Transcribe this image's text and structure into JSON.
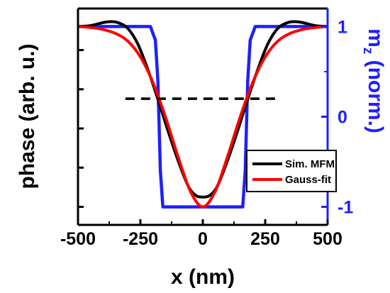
{
  "chart_data": {
    "type": "line",
    "xlabel": "x (nm)",
    "ylabel_left": "phase (arb. u.)",
    "ylabel_right_main": "m",
    "ylabel_right_sub": "z",
    "ylabel_right_rest": " (norm.)",
    "xlim": [
      -500,
      500
    ],
    "x_ticks": [
      -500,
      -250,
      0,
      250,
      500
    ],
    "y_right_lim": [
      -1.2,
      1.2
    ],
    "y_right_ticks": [
      -1,
      0,
      1
    ],
    "y_left_lim": [
      0,
      1
    ],
    "y_left_tick_labels": "none",
    "legend_position": "lower-right",
    "colors": {
      "sim_mfm": "#000000",
      "gauss_fit": "#ff0000",
      "mz": "#1f1fff",
      "reference": "#000000"
    },
    "series": [
      {
        "name": "Sim. MFM",
        "axis": "left",
        "x": [
          -500,
          -450,
          -400,
          -370,
          -340,
          -300,
          -260,
          -220,
          -180,
          -140,
          -100,
          -60,
          -30,
          0,
          30,
          60,
          100,
          140,
          180,
          220,
          260,
          300,
          340,
          370,
          400,
          450,
          500
        ],
        "y": [
          0.97,
          0.975,
          0.99,
          0.995,
          0.99,
          0.96,
          0.88,
          0.75,
          0.6,
          0.44,
          0.29,
          0.16,
          0.11,
          0.1,
          0.11,
          0.16,
          0.29,
          0.44,
          0.6,
          0.75,
          0.88,
          0.96,
          0.99,
          0.995,
          0.99,
          0.975,
          0.97
        ]
      },
      {
        "name": "Gauss-fit",
        "axis": "left",
        "x": [
          -500,
          -450,
          -400,
          -350,
          -300,
          -250,
          -200,
          -150,
          -100,
          -50,
          0,
          50,
          100,
          150,
          200,
          250,
          300,
          350,
          400,
          450,
          500
        ],
        "y": [
          0.97,
          0.965,
          0.955,
          0.935,
          0.895,
          0.815,
          0.685,
          0.51,
          0.31,
          0.13,
          0.05,
          0.13,
          0.31,
          0.51,
          0.685,
          0.815,
          0.895,
          0.935,
          0.955,
          0.965,
          0.97
        ]
      },
      {
        "name": "",
        "axis": "right",
        "x": [
          -500,
          -210,
          -190,
          -180,
          -170,
          -160,
          160,
          170,
          180,
          190,
          210,
          500
        ],
        "y": [
          1,
          1,
          0.85,
          0.4,
          -0.6,
          -1,
          -1,
          -0.6,
          0.4,
          0.85,
          1,
          1
        ]
      },
      {
        "name": "",
        "style": "dashed",
        "axis": "right",
        "x": [
          -310,
          290
        ],
        "y": [
          0.2,
          0.2
        ]
      }
    ]
  }
}
